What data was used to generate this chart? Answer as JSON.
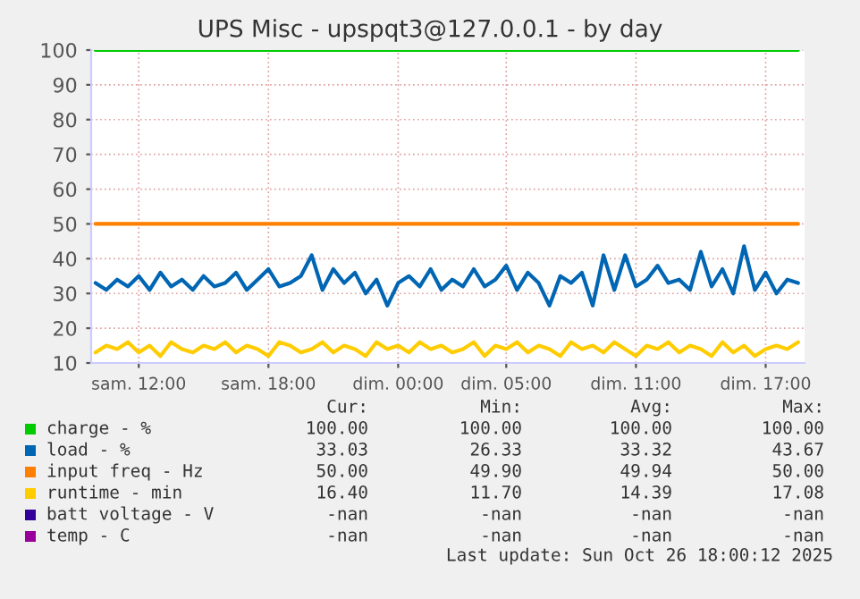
{
  "chart_data": {
    "type": "line",
    "title": "UPS Misc - upspqt3@127.0.0.1 - by day",
    "x": [
      "2025-10-25T10:00",
      "2025-10-25T10:30",
      "2025-10-25T11:00",
      "2025-10-25T11:30",
      "2025-10-25T12:00",
      "2025-10-25T12:30",
      "2025-10-25T13:00",
      "2025-10-25T13:30",
      "2025-10-25T14:00",
      "2025-10-25T14:30",
      "2025-10-25T15:00",
      "2025-10-25T15:30",
      "2025-10-25T16:00",
      "2025-10-25T16:30",
      "2025-10-25T17:00",
      "2025-10-25T17:30",
      "2025-10-25T18:00",
      "2025-10-25T18:30",
      "2025-10-25T19:00",
      "2025-10-25T19:30",
      "2025-10-25T20:00",
      "2025-10-25T20:30",
      "2025-10-25T21:00",
      "2025-10-25T21:30",
      "2025-10-25T22:00",
      "2025-10-25T22:30",
      "2025-10-25T23:00",
      "2025-10-25T23:30",
      "2025-10-26T00:00",
      "2025-10-26T00:30",
      "2025-10-26T01:00",
      "2025-10-26T01:30",
      "2025-10-26T02:00",
      "2025-10-26T02:30",
      "2025-10-26T03:00",
      "2025-10-26T03:30",
      "2025-10-26T04:00",
      "2025-10-26T04:30",
      "2025-10-26T05:00",
      "2025-10-26T05:30",
      "2025-10-26T06:00",
      "2025-10-26T06:30",
      "2025-10-26T07:00",
      "2025-10-26T07:30",
      "2025-10-26T08:00",
      "2025-10-26T08:30",
      "2025-10-26T09:00",
      "2025-10-26T09:30",
      "2025-10-26T10:00",
      "2025-10-26T10:30",
      "2025-10-26T11:00",
      "2025-10-26T11:30",
      "2025-10-26T12:00",
      "2025-10-26T12:30",
      "2025-10-26T13:00",
      "2025-10-26T13:30",
      "2025-10-26T14:00",
      "2025-10-26T14:30",
      "2025-10-26T15:00",
      "2025-10-26T15:30",
      "2025-10-26T16:00",
      "2025-10-26T16:30",
      "2025-10-26T17:00",
      "2025-10-26T17:30",
      "2025-10-26T18:00",
      "2025-10-26T18:30"
    ],
    "series": [
      {
        "name": "charge - %",
        "color": "#00cc00",
        "values": [
          100,
          100,
          100,
          100,
          100,
          100,
          100,
          100,
          100,
          100,
          100,
          100,
          100,
          100,
          100,
          100,
          100,
          100,
          100,
          100,
          100,
          100,
          100,
          100,
          100,
          100,
          100,
          100,
          100,
          100,
          100,
          100,
          100,
          100,
          100,
          100,
          100,
          100,
          100,
          100,
          100,
          100,
          100,
          100,
          100,
          100,
          100,
          100,
          100,
          100,
          100,
          100,
          100,
          100,
          100,
          100,
          100,
          100,
          100,
          100,
          100,
          100,
          100,
          100,
          100,
          100
        ]
      },
      {
        "name": "load - %",
        "color": "#0066b3",
        "values": [
          33,
          31,
          34,
          32,
          35,
          31,
          36,
          32,
          34,
          31,
          35,
          32,
          33,
          36,
          31,
          34,
          37,
          32,
          33,
          35,
          41,
          31,
          37,
          33,
          36,
          30,
          34,
          26.5,
          33,
          35,
          32,
          37,
          31,
          34,
          32,
          37,
          32,
          34,
          38,
          31,
          36,
          33,
          26.5,
          35,
          33,
          36,
          26.5,
          41,
          31,
          41,
          32,
          34,
          38,
          33,
          34,
          31,
          42,
          32,
          37,
          30,
          43.6,
          31,
          36,
          30,
          34,
          33
        ]
      },
      {
        "name": "input freq - Hz",
        "color": "#ff8000",
        "values": [
          50,
          50,
          50,
          50,
          50,
          50,
          50,
          50,
          50,
          50,
          50,
          50,
          50,
          50,
          50,
          50,
          50,
          50,
          50,
          50,
          50,
          50,
          50,
          50,
          50,
          50,
          50,
          50,
          50,
          50,
          50,
          50,
          50,
          50,
          50,
          50,
          50,
          50,
          50,
          50,
          50,
          50,
          50,
          50,
          50,
          50,
          50,
          50,
          50,
          50,
          50,
          50,
          50,
          50,
          50,
          50,
          50,
          50,
          50,
          50,
          50,
          50,
          50,
          50,
          50,
          50
        ]
      },
      {
        "name": "runtime - min",
        "color": "#ffcc00",
        "values": [
          13,
          15,
          14,
          16,
          13,
          15,
          12,
          16,
          14,
          13,
          15,
          14,
          16,
          13,
          15,
          14,
          12,
          16,
          15,
          13,
          14,
          16,
          13,
          15,
          14,
          12,
          16,
          14,
          15,
          13,
          16,
          14,
          15,
          13,
          14,
          16,
          12,
          15,
          14,
          16,
          13,
          15,
          14,
          12,
          16,
          14,
          15,
          13,
          16,
          14,
          12,
          15,
          14,
          16,
          13,
          15,
          14,
          12,
          16,
          13,
          15,
          12,
          14,
          15,
          14,
          16
        ]
      },
      {
        "name": "batt voltage - V",
        "color": "#330099",
        "values": [
          null,
          null,
          null,
          null,
          null,
          null,
          null,
          null,
          null,
          null,
          null,
          null,
          null,
          null,
          null,
          null,
          null,
          null,
          null,
          null,
          null,
          null,
          null,
          null,
          null,
          null,
          null,
          null,
          null,
          null,
          null,
          null,
          null,
          null,
          null,
          null,
          null,
          null,
          null,
          null,
          null,
          null,
          null,
          null,
          null,
          null,
          null,
          null,
          null,
          null,
          null,
          null,
          null,
          null,
          null,
          null,
          null,
          null,
          null,
          null,
          null,
          null,
          null,
          null,
          null,
          null
        ]
      },
      {
        "name": "temp - C",
        "color": "#990099",
        "values": [
          null,
          null,
          null,
          null,
          null,
          null,
          null,
          null,
          null,
          null,
          null,
          null,
          null,
          null,
          null,
          null,
          null,
          null,
          null,
          null,
          null,
          null,
          null,
          null,
          null,
          null,
          null,
          null,
          null,
          null,
          null,
          null,
          null,
          null,
          null,
          null,
          null,
          null,
          null,
          null,
          null,
          null,
          null,
          null,
          null,
          null,
          null,
          null,
          null,
          null,
          null,
          null,
          null,
          null,
          null,
          null,
          null,
          null,
          null,
          null,
          null,
          null,
          null,
          null,
          null,
          null
        ]
      }
    ],
    "xlim": [
      "2025-10-25T09:48",
      "2025-10-26T18:48"
    ],
    "xticks": [
      {
        "value": "2025-10-25T12:00",
        "label": "sam. 12:00"
      },
      {
        "value": "2025-10-25T18:00",
        "label": "sam. 18:00"
      },
      {
        "value": "2025-10-26T00:00",
        "label": "dim. 00:00"
      },
      {
        "value": "2025-10-26T05:00",
        "label": "dim. 05:00"
      },
      {
        "value": "2025-10-26T11:00",
        "label": "dim. 11:00"
      },
      {
        "value": "2025-10-26T17:00",
        "label": "dim. 17:00"
      }
    ],
    "ylim": [
      10,
      100
    ],
    "yticks": [
      10,
      20,
      30,
      40,
      50,
      60,
      70,
      80,
      90,
      100
    ],
    "grid": true,
    "legend": "bottom",
    "annotations": [
      "Cur:",
      "Min:",
      "Avg:",
      "Max:",
      "100.00",
      "100.00",
      "100.00",
      "100.00",
      "33.03",
      "26.33",
      "33.32",
      "43.67",
      "50.00",
      "49.90",
      "49.94",
      "50.00",
      "16.40",
      "11.70",
      "14.39",
      "17.08",
      "-nan",
      "-nan",
      "-nan",
      "-nan",
      "-nan",
      "-nan",
      "-nan",
      "-nan",
      "Last update: Sun Oct 26 18:00:12 2025"
    ]
  }
}
